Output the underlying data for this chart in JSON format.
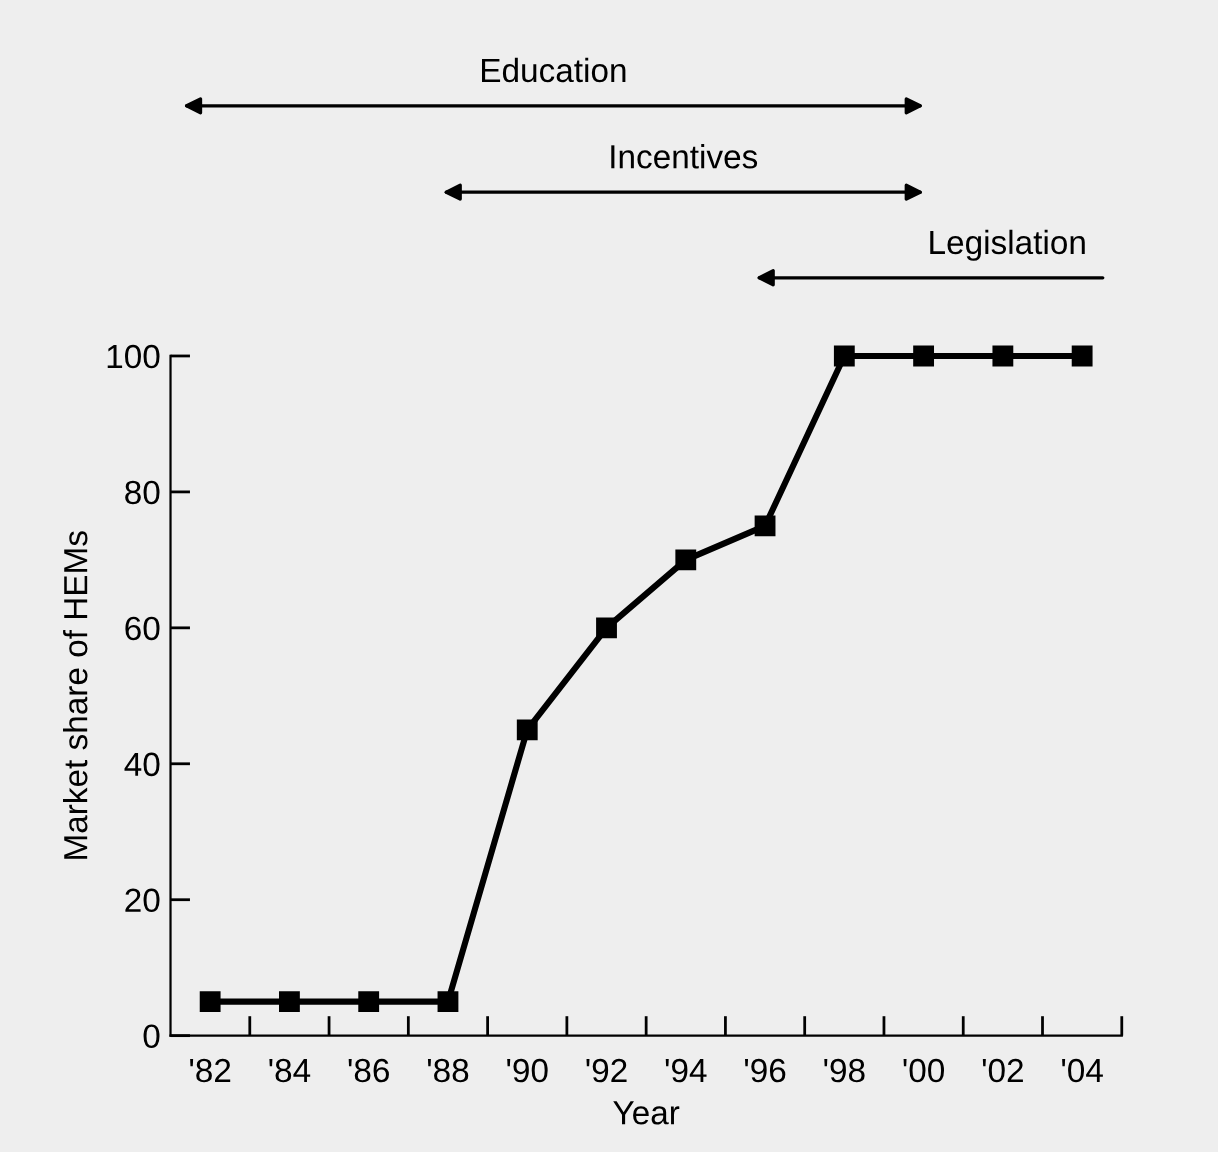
{
  "chart_data": {
    "type": "line",
    "xlabel": "Year",
    "ylabel": "Market share of HEMs",
    "categories": [
      "'82",
      "'84",
      "'86",
      "'88",
      "'90",
      "'92",
      "'94",
      "'96",
      "'98",
      "'00",
      "'02",
      "'04"
    ],
    "series": [
      {
        "color": "#000000",
        "values": [
          5,
          5,
          5,
          5,
          45,
          60,
          70,
          75,
          100,
          100,
          100,
          100
        ]
      }
    ],
    "ylim": [
      0,
      100
    ],
    "yticks": [
      0,
      20,
      40,
      60,
      80,
      100
    ],
    "marker": "square",
    "line_style": "solid",
    "grid": false,
    "annotations": [
      "Education",
      "Incentives",
      "Legislation"
    ]
  }
}
